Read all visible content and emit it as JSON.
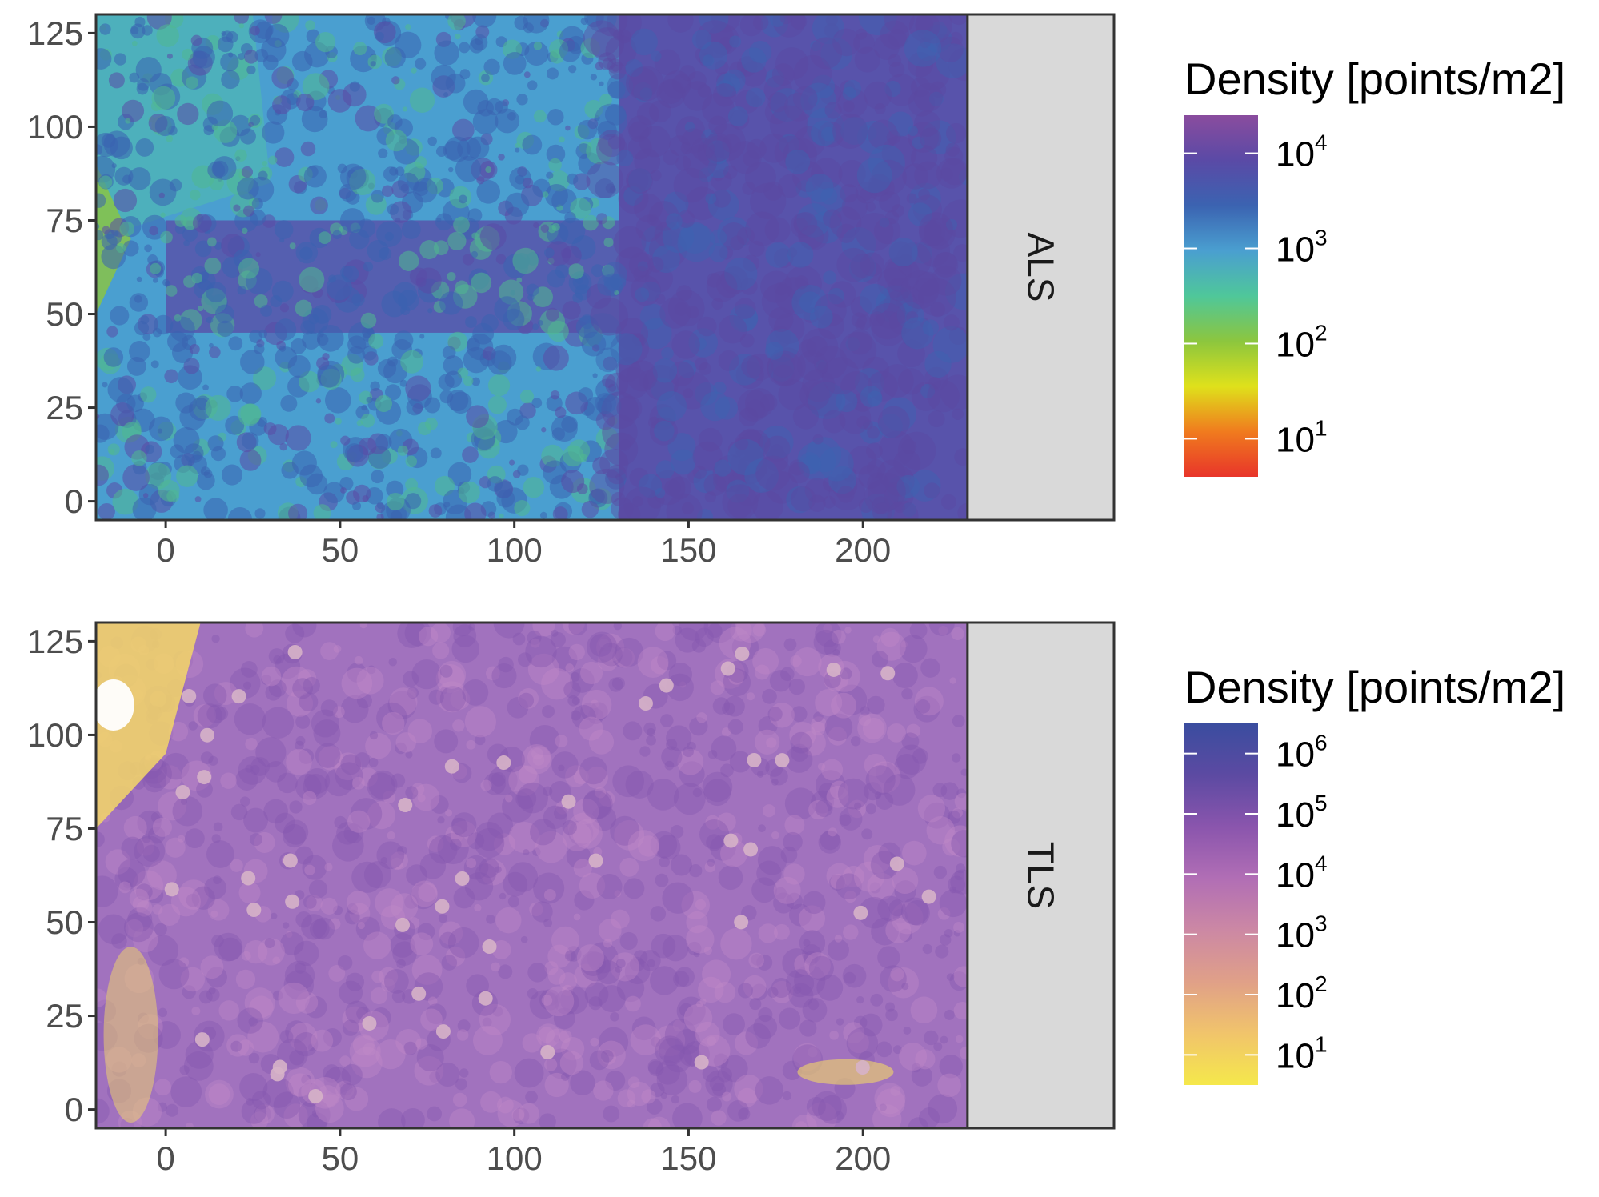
{
  "chart_data": [
    {
      "type": "heatmap",
      "facet": "ALS",
      "xlim": [
        -20,
        250
      ],
      "ylim": [
        -5,
        130
      ],
      "x_ticks": [
        0,
        50,
        100,
        150,
        200
      ],
      "y_ticks": [
        0,
        25,
        50,
        75,
        100,
        125
      ],
      "x_tick_labels": [
        "0",
        "50",
        "100",
        "150",
        "200"
      ],
      "y_tick_labels": [
        "0",
        "25",
        "50",
        "75",
        "100",
        "125"
      ],
      "data_extent": {
        "x": [
          -20,
          230
        ],
        "y": [
          -5,
          130
        ]
      },
      "color_scale": "log10",
      "legend": {
        "title": "Density [points/m2]",
        "range_log10": [
          0.6,
          4.4
        ],
        "breaks_log10": [
          1,
          2,
          3,
          4
        ],
        "labels": [
          {
            "base": "10",
            "exp": "1"
          },
          {
            "base": "10",
            "exp": "2"
          },
          {
            "base": "10",
            "exp": "3"
          },
          {
            "base": "10",
            "exp": "4"
          }
        ],
        "colors": [
          "#e8352a",
          "#f07b1e",
          "#dfe11b",
          "#8cc63e",
          "#4fc79a",
          "#4a9fd0",
          "#3b63b1",
          "#5a4aa6",
          "#8a4c9e"
        ]
      },
      "background_colors": [
        "#4a9fd0",
        "#3b63b1",
        "#5a4aa6",
        "#50b890",
        "#8cc63e"
      ]
    },
    {
      "type": "heatmap",
      "facet": "TLS",
      "xlim": [
        -20,
        250
      ],
      "ylim": [
        -5,
        130
      ],
      "x_ticks": [
        0,
        50,
        100,
        150,
        200
      ],
      "y_ticks": [
        0,
        25,
        50,
        75,
        100,
        125
      ],
      "x_tick_labels": [
        "0",
        "50",
        "100",
        "150",
        "200"
      ],
      "y_tick_labels": [
        "0",
        "25",
        "50",
        "75",
        "100",
        "125"
      ],
      "data_extent": {
        "x": [
          -20,
          230
        ],
        "y": [
          -5,
          130
        ]
      },
      "color_scale": "log10",
      "legend": {
        "title": "Density [points/m2]",
        "range_log10": [
          0.5,
          6.5
        ],
        "breaks_log10": [
          1,
          2,
          3,
          4,
          5,
          6
        ],
        "labels": [
          {
            "base": "10",
            "exp": "1"
          },
          {
            "base": "10",
            "exp": "2"
          },
          {
            "base": "10",
            "exp": "3"
          },
          {
            "base": "10",
            "exp": "4"
          },
          {
            "base": "10",
            "exp": "5"
          },
          {
            "base": "10",
            "exp": "6"
          }
        ],
        "colors": [
          "#f5e84b",
          "#f1c46b",
          "#e0a088",
          "#cc88a4",
          "#b16eb5",
          "#8a55ad",
          "#5c4aa2",
          "#3a4d9f"
        ]
      },
      "background_colors": [
        "#a172be",
        "#8458b0",
        "#c08ac7",
        "#f4d767",
        "#ffffff"
      ]
    }
  ]
}
